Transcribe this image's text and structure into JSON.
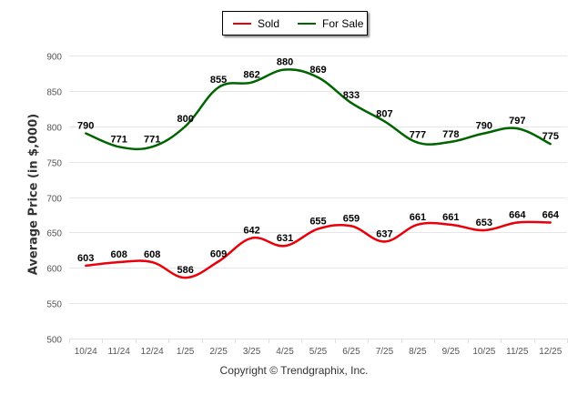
{
  "chart_data": {
    "type": "line",
    "title": "",
    "xlabel": "",
    "ylabel": "Average Price (in $,000)",
    "ylim": [
      500,
      900
    ],
    "yticks": [
      500,
      550,
      600,
      650,
      700,
      750,
      800,
      850,
      900
    ],
    "grid": true,
    "legend_position": "top-center",
    "categories": [
      "10/24",
      "11/24",
      "12/24",
      "1/25",
      "2/25",
      "3/25",
      "4/25",
      "5/25",
      "6/25",
      "7/25",
      "8/25",
      "9/25",
      "10/25",
      "11/25",
      "12/25"
    ],
    "series": [
      {
        "name": "Sold",
        "color": "#e8000b",
        "values": [
          603,
          608,
          608,
          586,
          609,
          642,
          631,
          655,
          659,
          637,
          661,
          661,
          653,
          664,
          664
        ]
      },
      {
        "name": "For Sale",
        "color": "#006400",
        "values": [
          790,
          771,
          771,
          800,
          855,
          862,
          880,
          869,
          833,
          807,
          777,
          778,
          790,
          797,
          775
        ]
      }
    ]
  },
  "footer": {
    "copyright": "Copyright © Trendgraphix, Inc."
  }
}
